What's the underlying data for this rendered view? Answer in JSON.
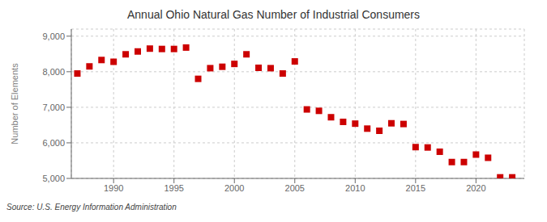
{
  "chart_data": {
    "type": "scatter",
    "title": "Annual Ohio Natural Gas Number of Industrial Consumers",
    "ylabel": "Number of Elements",
    "annotations": [
      "Source: U.S. Energy Information Administration"
    ],
    "color": "#cc0000",
    "marker": "square",
    "grid": true,
    "xlim": [
      1986.5,
      2024
    ],
    "xticks": [
      1990,
      1995,
      2000,
      2005,
      2010,
      2015,
      2020
    ],
    "ylim": [
      5000,
      9200
    ],
    "yticks": [
      {
        "value": 5000,
        "label": "5,000"
      },
      {
        "value": 6000,
        "label": "6,000"
      },
      {
        "value": 7000,
        "label": "7,000"
      },
      {
        "value": 8000,
        "label": "8,000"
      },
      {
        "value": 9000,
        "label": "9,000"
      }
    ],
    "x": [
      1987,
      1988,
      1989,
      1990,
      1991,
      1992,
      1993,
      1994,
      1995,
      1996,
      1997,
      1998,
      1999,
      2000,
      2001,
      2002,
      2003,
      2004,
      2005,
      2006,
      2007,
      2008,
      2009,
      2010,
      2011,
      2012,
      2013,
      2014,
      2015,
      2016,
      2017,
      2018,
      2019,
      2020,
      2021,
      2022,
      2023
    ],
    "values": [
      7950,
      8150,
      8330,
      8280,
      8490,
      8570,
      8650,
      8640,
      8640,
      8680,
      7800,
      8100,
      8140,
      8220,
      8490,
      8110,
      8100,
      7950,
      8290,
      6940,
      6900,
      6720,
      6590,
      6540,
      6400,
      6340,
      6550,
      6530,
      5880,
      5870,
      5750,
      5460,
      5460,
      5670,
      5580,
      5030,
      5030
    ]
  }
}
